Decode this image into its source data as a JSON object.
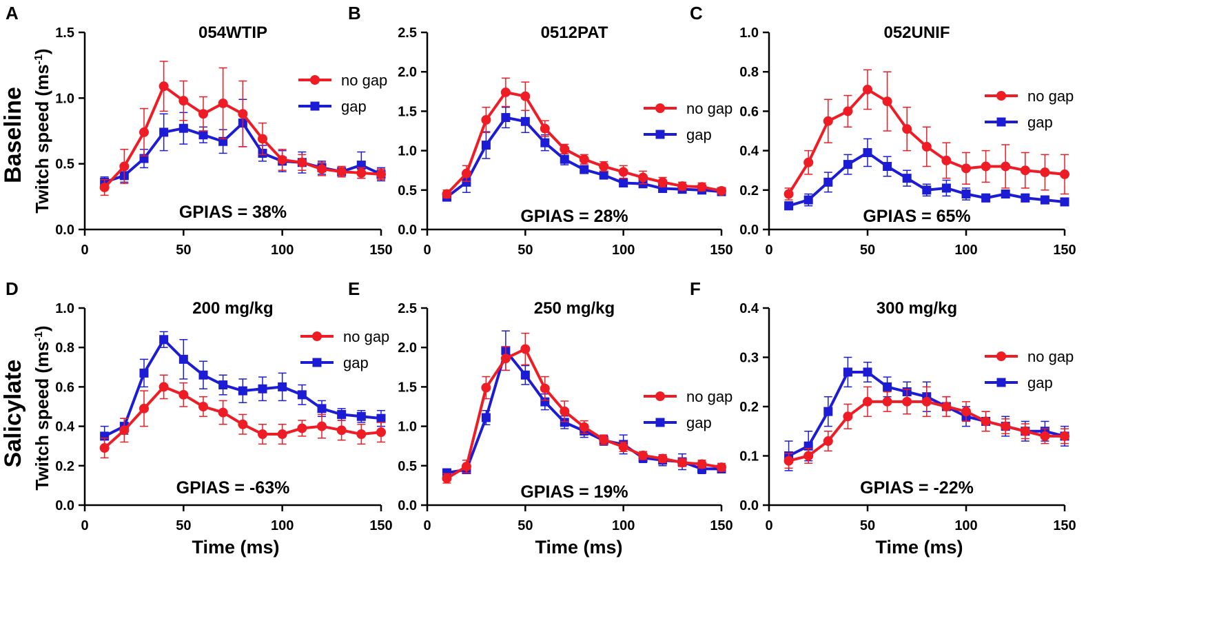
{
  "figure": {
    "row_labels": [
      "Baseline",
      "Salicylate"
    ],
    "ylabel": "Twitch speed (ms",
    "ylabel_sup": "-1",
    "ylabel_close": ")",
    "xlabel": "Time (ms)"
  },
  "chart_data": [
    {
      "panel": "A",
      "type": "line",
      "title": "054WTIP",
      "annotation": "GPIAS = 38%",
      "xlim": [
        0,
        150
      ],
      "xticks": [
        0,
        50,
        100,
        150
      ],
      "ylim": [
        0,
        1.5
      ],
      "yticks": [
        "0.0",
        "0.5",
        "1.0",
        "1.5"
      ],
      "legend": "right",
      "x": [
        10,
        20,
        30,
        40,
        50,
        60,
        70,
        80,
        90,
        100,
        110,
        120,
        130,
        140,
        150
      ],
      "series": [
        {
          "name": "no gap",
          "color": "#ee1c25",
          "marker": "circle",
          "values": [
            0.32,
            0.48,
            0.74,
            1.09,
            0.98,
            0.88,
            0.96,
            0.88,
            0.69,
            0.53,
            0.51,
            0.46,
            0.44,
            0.43,
            0.42
          ],
          "errors": [
            0.06,
            0.13,
            0.18,
            0.19,
            0.15,
            0.13,
            0.27,
            0.25,
            0.12,
            0.08,
            0.06,
            0.05,
            0.04,
            0.04,
            0.04
          ]
        },
        {
          "name": "gap",
          "color": "#1c1cd4",
          "marker": "square",
          "values": [
            0.36,
            0.41,
            0.54,
            0.74,
            0.77,
            0.72,
            0.67,
            0.81,
            0.58,
            0.52,
            0.51,
            0.47,
            0.44,
            0.49,
            0.42
          ],
          "errors": [
            0.04,
            0.05,
            0.07,
            0.14,
            0.12,
            0.06,
            0.09,
            0.18,
            0.06,
            0.08,
            0.08,
            0.05,
            0.03,
            0.1,
            0.05
          ]
        }
      ]
    },
    {
      "panel": "B",
      "type": "line",
      "title": "0512PAT",
      "annotation": "GPIAS = 28%",
      "xlim": [
        0,
        150
      ],
      "xticks": [
        0,
        50,
        100,
        150
      ],
      "ylim": [
        0,
        2.5
      ],
      "yticks": [
        "0.0",
        "0.5",
        "1.0",
        "1.5",
        "2.0",
        "2.5"
      ],
      "legend": "right",
      "x": [
        10,
        20,
        30,
        40,
        50,
        60,
        70,
        80,
        90,
        100,
        110,
        120,
        130,
        140,
        150
      ],
      "series": [
        {
          "name": "no gap",
          "color": "#ee1c25",
          "marker": "circle",
          "values": [
            0.45,
            0.71,
            1.39,
            1.74,
            1.69,
            1.28,
            1.02,
            0.89,
            0.8,
            0.73,
            0.66,
            0.6,
            0.55,
            0.54,
            0.49
          ],
          "errors": [
            0.05,
            0.1,
            0.16,
            0.18,
            0.18,
            0.1,
            0.06,
            0.06,
            0.06,
            0.08,
            0.08,
            0.06,
            0.05,
            0.05,
            0.04
          ]
        },
        {
          "name": "gap",
          "color": "#1c1cd4",
          "marker": "square",
          "values": [
            0.41,
            0.6,
            1.07,
            1.42,
            1.37,
            1.1,
            0.89,
            0.76,
            0.69,
            0.59,
            0.58,
            0.52,
            0.51,
            0.5,
            0.48
          ],
          "errors": [
            0.04,
            0.13,
            0.17,
            0.13,
            0.14,
            0.1,
            0.07,
            0.05,
            0.05,
            0.05,
            0.05,
            0.04,
            0.04,
            0.04,
            0.04
          ]
        }
      ]
    },
    {
      "panel": "C",
      "type": "line",
      "title": "052UNIF",
      "annotation": "GPIAS = 65%",
      "xlim": [
        0,
        150
      ],
      "xticks": [
        0,
        50,
        100,
        150
      ],
      "ylim": [
        0,
        1.0
      ],
      "yticks": [
        "0.0",
        "0.2",
        "0.4",
        "0.6",
        "0.8",
        "1.0"
      ],
      "legend": "right",
      "x": [
        10,
        20,
        30,
        40,
        50,
        60,
        70,
        80,
        90,
        100,
        110,
        120,
        130,
        140,
        150
      ],
      "series": [
        {
          "name": "no gap",
          "color": "#ee1c25",
          "marker": "circle",
          "values": [
            0.18,
            0.34,
            0.55,
            0.6,
            0.71,
            0.65,
            0.51,
            0.42,
            0.35,
            0.31,
            0.32,
            0.32,
            0.3,
            0.29,
            0.28
          ],
          "errors": [
            0.03,
            0.06,
            0.11,
            0.08,
            0.1,
            0.15,
            0.11,
            0.1,
            0.09,
            0.08,
            0.08,
            0.11,
            0.09,
            0.09,
            0.1
          ]
        },
        {
          "name": "gap",
          "color": "#1c1cd4",
          "marker": "square",
          "values": [
            0.12,
            0.15,
            0.24,
            0.33,
            0.39,
            0.32,
            0.26,
            0.2,
            0.21,
            0.18,
            0.16,
            0.18,
            0.16,
            0.15,
            0.14
          ],
          "errors": [
            0.02,
            0.03,
            0.05,
            0.05,
            0.07,
            0.05,
            0.04,
            0.03,
            0.04,
            0.03,
            0.02,
            0.02,
            0.02,
            0.02,
            0.02
          ]
        }
      ]
    },
    {
      "panel": "D",
      "type": "line",
      "title": "200 mg/kg",
      "annotation": "GPIAS = -63%",
      "xlim": [
        0,
        150
      ],
      "xticks": [
        0,
        50,
        100,
        150
      ],
      "ylim": [
        0,
        1.0
      ],
      "yticks": [
        "0.0",
        "0.2",
        "0.4",
        "0.6",
        "0.8",
        "1.0"
      ],
      "legend": "right",
      "x": [
        10,
        20,
        30,
        40,
        50,
        60,
        70,
        80,
        90,
        100,
        110,
        120,
        130,
        140,
        150
      ],
      "series": [
        {
          "name": "no gap",
          "color": "#ee1c25",
          "marker": "circle",
          "values": [
            0.29,
            0.38,
            0.49,
            0.6,
            0.56,
            0.5,
            0.47,
            0.41,
            0.36,
            0.36,
            0.39,
            0.4,
            0.38,
            0.36,
            0.37
          ],
          "errors": [
            0.05,
            0.06,
            0.09,
            0.06,
            0.06,
            0.05,
            0.06,
            0.05,
            0.05,
            0.05,
            0.04,
            0.06,
            0.05,
            0.05,
            0.05
          ]
        },
        {
          "name": "gap",
          "color": "#1c1cd4",
          "marker": "square",
          "values": [
            0.35,
            0.4,
            0.67,
            0.84,
            0.74,
            0.66,
            0.61,
            0.58,
            0.59,
            0.6,
            0.56,
            0.49,
            0.46,
            0.45,
            0.44
          ],
          "errors": [
            0.05,
            0.04,
            0.07,
            0.04,
            0.1,
            0.07,
            0.05,
            0.06,
            0.06,
            0.07,
            0.05,
            0.04,
            0.03,
            0.03,
            0.04
          ]
        }
      ]
    },
    {
      "panel": "E",
      "type": "line",
      "title": "250 mg/kg",
      "annotation": "GPIAS = 19%",
      "xlim": [
        0,
        150
      ],
      "xticks": [
        0,
        50,
        100,
        150
      ],
      "ylim": [
        0,
        2.5
      ],
      "yticks": [
        "0.0",
        "0.5",
        "1.0",
        "1.5",
        "2.0",
        "2.5"
      ],
      "legend": "bottom-right",
      "x": [
        10,
        20,
        30,
        40,
        50,
        60,
        70,
        80,
        90,
        100,
        110,
        120,
        130,
        140,
        150
      ],
      "series": [
        {
          "name": "no gap",
          "color": "#ee1c25",
          "marker": "circle",
          "values": [
            0.34,
            0.49,
            1.49,
            1.86,
            1.98,
            1.48,
            1.19,
            0.99,
            0.83,
            0.74,
            0.63,
            0.59,
            0.54,
            0.52,
            0.48
          ],
          "errors": [
            0.06,
            0.08,
            0.14,
            0.15,
            0.2,
            0.15,
            0.13,
            0.08,
            0.06,
            0.06,
            0.05,
            0.05,
            0.05,
            0.05,
            0.05
          ]
        },
        {
          "name": "gap",
          "color": "#1c1cd4",
          "marker": "square",
          "values": [
            0.41,
            0.45,
            1.11,
            1.96,
            1.65,
            1.31,
            1.05,
            0.94,
            0.82,
            0.77,
            0.6,
            0.57,
            0.55,
            0.46,
            0.46
          ],
          "errors": [
            0.05,
            0.04,
            0.09,
            0.25,
            0.12,
            0.1,
            0.08,
            0.08,
            0.06,
            0.12,
            0.06,
            0.07,
            0.1,
            0.06,
            0.05
          ]
        }
      ]
    },
    {
      "panel": "F",
      "type": "line",
      "title": "300 mg/kg",
      "annotation": "GPIAS = -22%",
      "xlim": [
        0,
        150
      ],
      "xticks": [
        0,
        50,
        100,
        150
      ],
      "ylim": [
        0,
        0.4
      ],
      "yticks": [
        "0.0",
        "0.1",
        "0.2",
        "0.3",
        "0.4"
      ],
      "legend": "right",
      "x": [
        10,
        20,
        30,
        40,
        50,
        60,
        70,
        80,
        90,
        100,
        110,
        120,
        130,
        140,
        150
      ],
      "series": [
        {
          "name": "no gap",
          "color": "#ee1c25",
          "marker": "circle",
          "values": [
            0.09,
            0.1,
            0.13,
            0.18,
            0.21,
            0.21,
            0.21,
            0.21,
            0.2,
            0.19,
            0.17,
            0.16,
            0.15,
            0.14,
            0.14
          ],
          "errors": [
            0.015,
            0.015,
            0.02,
            0.025,
            0.03,
            0.02,
            0.025,
            0.03,
            0.02,
            0.02,
            0.02,
            0.015,
            0.015,
            0.015,
            0.015
          ]
        },
        {
          "name": "gap",
          "color": "#1c1cd4",
          "marker": "square",
          "values": [
            0.1,
            0.12,
            0.19,
            0.27,
            0.27,
            0.24,
            0.23,
            0.22,
            0.2,
            0.18,
            0.17,
            0.16,
            0.15,
            0.15,
            0.14
          ],
          "errors": [
            0.03,
            0.03,
            0.03,
            0.03,
            0.02,
            0.02,
            0.02,
            0.03,
            0.02,
            0.02,
            0.02,
            0.02,
            0.02,
            0.02,
            0.02
          ]
        }
      ]
    }
  ]
}
